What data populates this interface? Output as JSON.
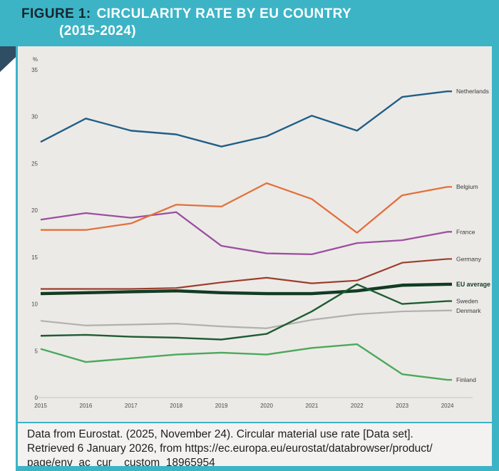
{
  "header": {
    "figure_label": "FIGURE 1:",
    "title": "CIRCULARITY RATE BY EU COUNTRY",
    "title_line2": "(2015-2024)"
  },
  "colors": {
    "teal_accent": "#3CB4C6",
    "corner_navy": "#2F4D63",
    "chart_background": "#ECEAE7",
    "figure_label_text": "#16262E",
    "axis_text": "#4A4A4A",
    "series_label_text": "#3A3A3A"
  },
  "chart_data": {
    "type": "line",
    "title": "Circularity rate by EU country (2015-2024)",
    "xlabel": "",
    "ylabel": "%",
    "x": [
      2015,
      2016,
      2017,
      2018,
      2019,
      2020,
      2021,
      2022,
      2023,
      2024
    ],
    "yticks": [
      0,
      5,
      10,
      15,
      20,
      25,
      30,
      35
    ],
    "ylim": [
      0,
      35
    ],
    "grid": false,
    "legend_position": "right-edge-labels",
    "series": [
      {
        "name": "Netherlands",
        "color": "#1F5F87",
        "width": 2.4,
        "z": 8,
        "emphasis": false,
        "values": [
          27.3,
          29.8,
          28.5,
          28.1,
          26.8,
          27.9,
          30.1,
          28.5,
          32.1,
          32.7
        ]
      },
      {
        "name": "Belgium",
        "color": "#E2713C",
        "width": 2.3,
        "z": 7,
        "emphasis": false,
        "values": [
          17.9,
          17.9,
          18.6,
          20.6,
          20.4,
          22.9,
          21.2,
          17.6,
          21.6,
          22.5
        ]
      },
      {
        "name": "France",
        "color": "#9C4F9F",
        "width": 2.3,
        "z": 6,
        "emphasis": false,
        "values": [
          19.0,
          19.7,
          19.2,
          19.8,
          16.2,
          15.4,
          15.3,
          16.5,
          16.8,
          17.7
        ]
      },
      {
        "name": "Germany",
        "color": "#9C3D2C",
        "width": 2.2,
        "z": 5,
        "emphasis": false,
        "values": [
          11.6,
          11.6,
          11.6,
          11.7,
          12.3,
          12.8,
          12.2,
          12.5,
          14.4,
          14.8
        ]
      },
      {
        "name": "EU average",
        "color": "#123B23",
        "width": 4.4,
        "z": 3,
        "emphasis": true,
        "values": [
          11.1,
          11.2,
          11.3,
          11.4,
          11.2,
          11.1,
          11.1,
          11.4,
          12.0,
          12.1
        ]
      },
      {
        "name": "Sweden",
        "color": "#1F5C33",
        "width": 2.4,
        "z": 4,
        "emphasis": false,
        "values": [
          6.6,
          6.7,
          6.5,
          6.4,
          6.2,
          6.8,
          9.2,
          12.1,
          10.0,
          10.3
        ]
      },
      {
        "name": "Denmark",
        "color": "#B2B0AD",
        "width": 2.2,
        "z": 1,
        "emphasis": false,
        "values": [
          8.2,
          7.7,
          7.8,
          7.9,
          7.6,
          7.4,
          8.3,
          8.9,
          9.2,
          9.3
        ]
      },
      {
        "name": "Finland",
        "color": "#4BA95B",
        "width": 2.4,
        "z": 2,
        "emphasis": false,
        "values": [
          5.2,
          3.8,
          4.2,
          4.6,
          4.8,
          4.6,
          5.3,
          5.7,
          2.5,
          1.9
        ]
      }
    ]
  },
  "footer": {
    "citation": "Data from Eurostat. (2025, November 24). Circular material use rate [Data set].\nRetrieved 6 January 2026, from https://ec.europa.eu/eurostat/databrowser/product/\npage/env_ac_cur__custom_18965954"
  }
}
